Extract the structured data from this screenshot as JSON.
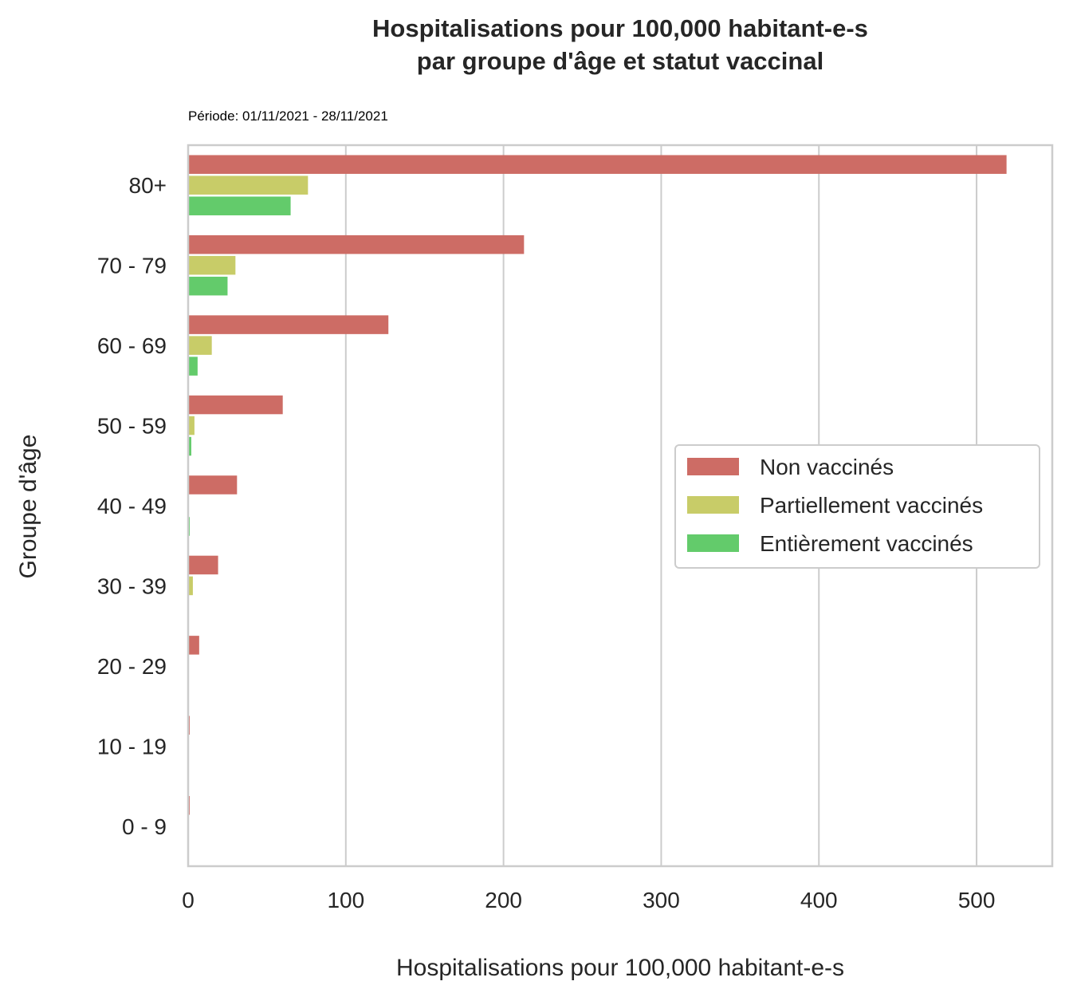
{
  "chart_data": {
    "type": "bar",
    "orientation": "horizontal",
    "title_lines": [
      "Hospitalisations pour 100,000 habitant-e-s",
      "par groupe d'âge et statut vaccinal"
    ],
    "subtitle": "Période: 01/11/2021 - 28/11/2021",
    "xlabel": "Hospitalisations pour 100,000 habitant-e-s",
    "ylabel": "Groupe d'âge",
    "xlim": [
      0,
      548
    ],
    "xticks": [
      0,
      100,
      200,
      300,
      400,
      500
    ],
    "grid": true,
    "legend_position": "right-center",
    "categories": [
      "80+",
      "70 - 79",
      "60 - 69",
      "50 - 59",
      "40 - 49",
      "30 - 39",
      "20 - 29",
      "10 - 19",
      "0 - 9"
    ],
    "series": [
      {
        "name": "Non vaccinés",
        "color": "#cd6c65",
        "values": [
          519,
          213,
          127,
          60,
          31,
          19,
          7,
          1,
          1
        ]
      },
      {
        "name": "Partiellement vaccinés",
        "color": "#c8cc68",
        "values": [
          76,
          30,
          15,
          4,
          0,
          3,
          0,
          0,
          0
        ]
      },
      {
        "name": "Entièrement vaccinés",
        "color": "#63cb6b",
        "values": [
          65,
          25,
          6,
          2,
          1,
          0,
          0,
          0,
          0
        ]
      }
    ]
  }
}
